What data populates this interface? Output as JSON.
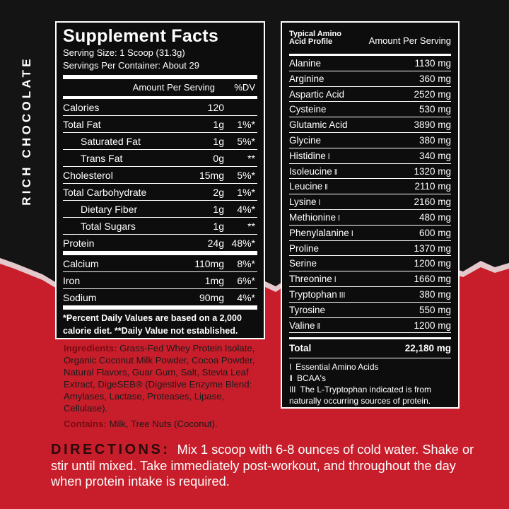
{
  "side_label": "RICH CHOCOLATE",
  "supplement_facts": {
    "title": "Supplement Facts",
    "serving_size": "Serving Size: 1 Scoop (31.3g)",
    "servings_per_container": "Servings Per Container: About 29",
    "amount_header": "Amount Per Serving",
    "dv_header": "%DV",
    "rows": [
      {
        "name": "Calories",
        "amount": "120"
      },
      {
        "name": "Total Fat",
        "amount": "1g",
        "dv": "1%*"
      },
      {
        "name": "Saturated Fat",
        "amount": "1g",
        "dv": "5%*"
      },
      {
        "name": "Trans Fat",
        "amount": "0g",
        "dv": "**"
      },
      {
        "name": "Cholesterol",
        "amount": "15mg",
        "dv": "5%*"
      },
      {
        "name": "Total Carbohydrate",
        "amount": "2g",
        "dv": "1%*"
      },
      {
        "name": "Dietary Fiber",
        "amount": "1g",
        "dv": "4%*"
      },
      {
        "name": "Total Sugars",
        "amount": "1g",
        "dv": "**"
      },
      {
        "name": "Protein",
        "amount": "24g",
        "dv": "48%*"
      },
      {
        "name": "Calcium",
        "amount": "110mg",
        "dv": "8%*"
      },
      {
        "name": "Iron",
        "amount": "1mg",
        "dv": "6%*"
      },
      {
        "name": "Sodium",
        "amount": "90mg",
        "dv": "4%*"
      }
    ],
    "footnote": "*Percent Daily Values are based on a 2,000 calorie diet. **Daily Value not established."
  },
  "ingredients": {
    "label": "Ingredients:",
    "text": "Grass-Fed Whey Protein Isolate, Organic Coconut Milk Powder, Cocoa Powder, Natural Flavors, Guar Gum, Salt, Stevia Leaf Extract, DigeSEB® (Digestive Enzyme Blend: Amylases, Lactase, Proteases, Lipase, Cellulase)."
  },
  "contains": {
    "label": "Contains:",
    "text": "Milk, Tree Nuts (Coconut)."
  },
  "directions": {
    "label": "DIRECTIONS:",
    "text": "Mix 1 scoop with 6-8 ounces of cold water. Shake or stir until mixed. Take immediately post-workout, and throughout the day when protein intake is required."
  },
  "amino_profile": {
    "title": "Typical Amino Acid Profile",
    "amount_header": "Amount Per Serving",
    "rows": [
      {
        "name": "Alanine",
        "amount": "1130 mg"
      },
      {
        "name": "Arginine",
        "amount": "360 mg"
      },
      {
        "name": "Aspartic Acid",
        "amount": "2520 mg"
      },
      {
        "name": "Cysteine",
        "amount": "530 mg"
      },
      {
        "name": "Glutamic Acid",
        "amount": "3890 mg"
      },
      {
        "name": "Glycine",
        "amount": "380 mg"
      },
      {
        "name": "Histidine",
        "mark": "ǀ",
        "amount": "340 mg"
      },
      {
        "name": "Isoleucine",
        "mark": "ǁ",
        "amount": "1320 mg"
      },
      {
        "name": "Leucine",
        "mark": "ǁ",
        "amount": "2110 mg"
      },
      {
        "name": "Lysine",
        "mark": "ǀ",
        "amount": "2160 mg"
      },
      {
        "name": "Methionine",
        "mark": "ǀ",
        "amount": "480 mg"
      },
      {
        "name": "Phenylalanine",
        "mark": "ǀ",
        "amount": "600 mg"
      },
      {
        "name": "Proline",
        "amount": "1370 mg"
      },
      {
        "name": "Serine",
        "amount": "1200 mg"
      },
      {
        "name": "Threonine",
        "mark": "ǀ",
        "amount": "1660 mg"
      },
      {
        "name": "Tryptophan",
        "mark": "ǀǀǀ",
        "amount": "380 mg"
      },
      {
        "name": "Tyrosine",
        "amount": "550 mg"
      },
      {
        "name": "Valine",
        "mark": "ǁ",
        "amount": "1200 mg"
      }
    ],
    "total": {
      "name": "Total",
      "amount": "22,180 mg"
    },
    "legend": [
      {
        "mark": "ǀ",
        "text": "Essential Amino Acids"
      },
      {
        "mark": "ǁ",
        "text": "BCAA's"
      },
      {
        "mark": "ǀǀǀ",
        "text": "The L-Tryptophan indicated is from naturally occurring sources of protein."
      }
    ]
  }
}
